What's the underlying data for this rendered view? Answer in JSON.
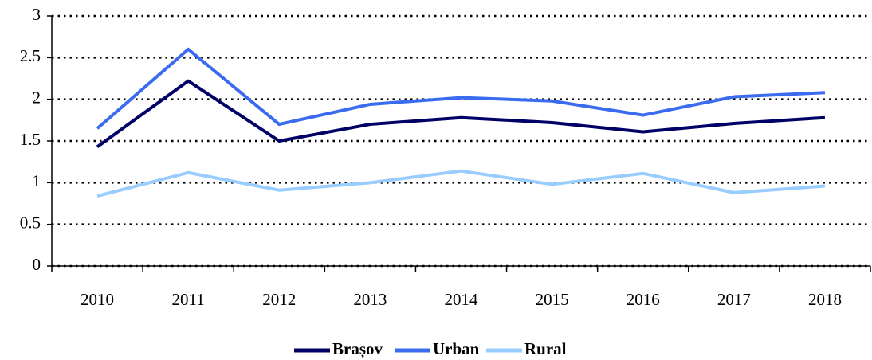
{
  "chart_data": {
    "type": "line",
    "categories": [
      "2010",
      "2011",
      "2012",
      "2013",
      "2014",
      "2015",
      "2016",
      "2017",
      "2018"
    ],
    "series": [
      {
        "name": "Brașov",
        "color": "#000066",
        "values": [
          1.43,
          2.22,
          1.5,
          1.7,
          1.78,
          1.72,
          1.61,
          1.71,
          1.78
        ]
      },
      {
        "name": "Urban",
        "color": "#3b6cf0",
        "values": [
          1.65,
          2.6,
          1.7,
          1.94,
          2.02,
          1.98,
          1.81,
          2.03,
          2.08
        ]
      },
      {
        "name": "Rural",
        "color": "#99ccff",
        "values": [
          0.84,
          1.12,
          0.91,
          1.0,
          1.14,
          0.98,
          1.11,
          0.88,
          0.96
        ]
      }
    ],
    "ylim": [
      0,
      3
    ],
    "yticks": [
      0,
      0.5,
      1,
      1.5,
      2,
      2.5,
      3
    ],
    "grid": true,
    "legend": "bottom"
  }
}
